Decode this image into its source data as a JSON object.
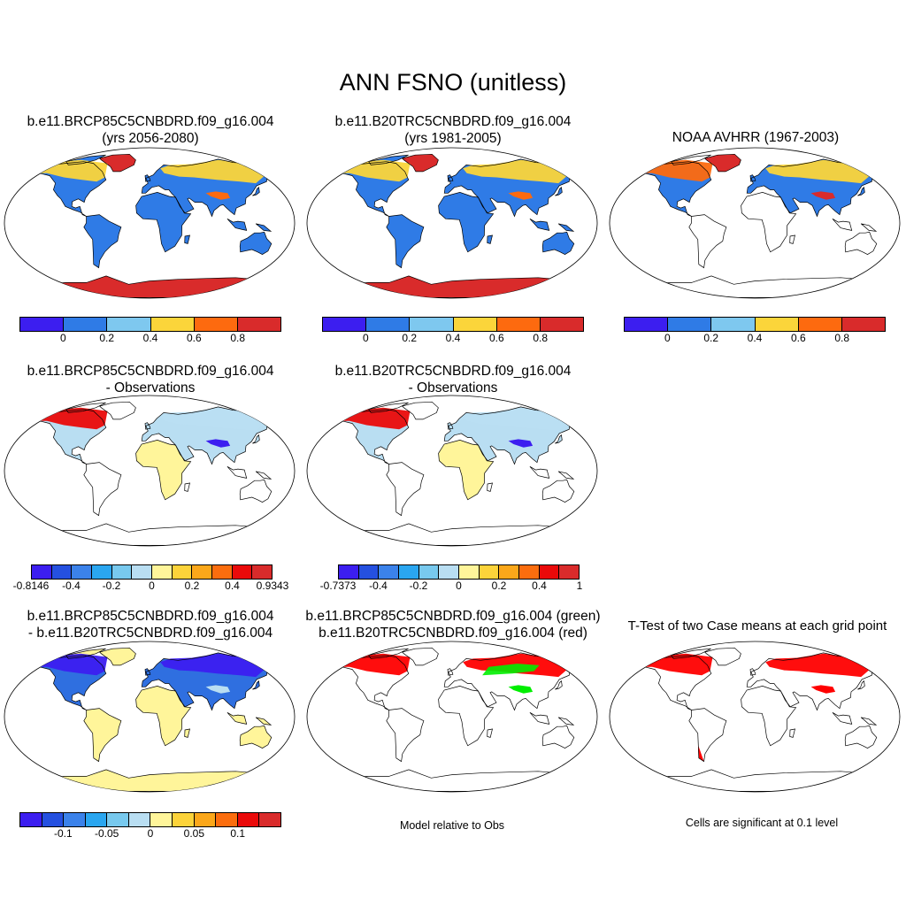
{
  "title": "ANN FSNO (unitless)",
  "panels": {
    "case1": {
      "line1": "b.e11.BRCP85C5CNBDRD.f09_g16.004",
      "line2": "(yrs 2056-2080)"
    },
    "case2": {
      "line1": "b.e11.B20TRC5CNBDRD.f09_g16.004",
      "line2": "(yrs 1981-2005)"
    },
    "obs": {
      "line1": "NOAA AVHRR (1967-2003)"
    },
    "diff1": {
      "line1": "b.e11.BRCP85C5CNBDRD.f09_g16.004",
      "line2": "- Observations"
    },
    "diff2": {
      "line1": "b.e11.B20TRC5CNBDRD.f09_g16.004",
      "line2": "- Observations"
    },
    "casediff": {
      "line1": "b.e11.BRCP85C5CNBDRD.f09_g16.004",
      "line2": "- b.e11.B20TRC5CNBDRD.f09_g16.004"
    },
    "rel": {
      "line1": "b.e11.BRCP85C5CNBDRD.f09_g16.004 (green)",
      "line2": "b.e11.B20TRC5CNBDRD.f09_g16.004 (red)",
      "note": "Model relative to Obs"
    },
    "ttest": {
      "line1": "T-Test of two Case means at each grid point",
      "note": "Cells are significant at 0.1 level"
    }
  },
  "colorbars": {
    "abs": {
      "colors": [
        "#3c1ef0",
        "#2f7be6",
        "#7ec8ef",
        "#fbd53a",
        "#fd6a0f",
        "#d92b2b"
      ],
      "ticks": [
        "0",
        "0.2",
        "0.4",
        "0.6",
        "0.8"
      ]
    },
    "diff1": {
      "colors": [
        "#3c1ef0",
        "#2550e0",
        "#3b82ea",
        "#2aa6f0",
        "#78c9ee",
        "#b9def2",
        "#fff59a",
        "#fcd33a",
        "#fba71a",
        "#fb6d0e",
        "#ea0a0a",
        "#d92b2b"
      ],
      "ticks": [
        "-0.8146",
        "-0.4",
        "-0.2",
        "0",
        "0.2",
        "0.4",
        "0.9343"
      ]
    },
    "diff2": {
      "colors": [
        "#3c1ef0",
        "#2550e0",
        "#3b82ea",
        "#2aa6f0",
        "#78c9ee",
        "#b9def2",
        "#fff59a",
        "#fcd33a",
        "#fba71a",
        "#fb6d0e",
        "#ea0a0a",
        "#d92b2b"
      ],
      "ticks": [
        "-0.7373",
        "-0.4",
        "-0.2",
        "0",
        "0.2",
        "0.4",
        "1"
      ]
    },
    "casediff": {
      "colors": [
        "#3c1ef0",
        "#2550e0",
        "#3b82ea",
        "#2aa6f0",
        "#78c9ee",
        "#b9def2",
        "#fff59a",
        "#fcd33a",
        "#fba71a",
        "#fb6d0e",
        "#ea0a0a",
        "#d92b2b"
      ],
      "ticks": [
        "-0.1",
        "-0.05",
        "0",
        "0.05",
        "0.1"
      ]
    }
  },
  "map_colors": {
    "land_low": "#2f7be6",
    "snow_mid": "#fbd53a",
    "snow_high": "#fd6a0f",
    "ice": "#d92b2b",
    "diff_neutral": "#fff59a",
    "diff_light_blue": "#b9def2",
    "diff_blue": "#2f6fe0",
    "diff_dark_blue": "#3c1ef0",
    "diff_red": "#ea0a0a",
    "sig_red": "#ff0000",
    "sig_green": "#00ee00"
  }
}
